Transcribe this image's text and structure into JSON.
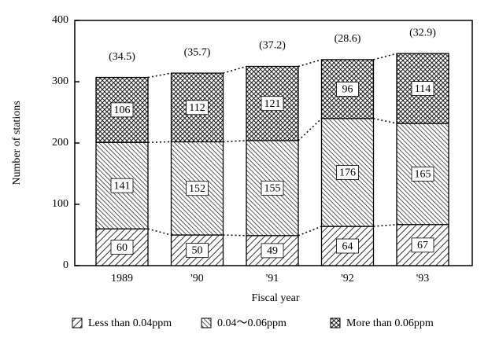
{
  "chart_data": {
    "type": "stacked-bar",
    "y_label": "Number of stations",
    "x_label": "Fiscal year",
    "categories": [
      "1989",
      "'90",
      "'91",
      "'92",
      "'93"
    ],
    "series": [
      {
        "name": "Less than 0.04ppm",
        "color": "#000000",
        "pattern": "hatch-right",
        "values": [
          60,
          50,
          49,
          64,
          67
        ]
      },
      {
        "name": "0.04～0.06ppm",
        "color": "#000000",
        "pattern": "hatch-left",
        "values": [
          141,
          152,
          155,
          176,
          165
        ]
      },
      {
        "name": "More than 0.06ppm",
        "color": "#000000",
        "pattern": "crosshatch",
        "values": [
          106,
          112,
          121,
          96,
          114
        ]
      }
    ],
    "annotations": [
      "(34.5)",
      "(35.7)",
      "(37.2)",
      "(28.6)",
      "(32.9)"
    ],
    "ylim": [
      0,
      400
    ],
    "yticks": [
      0,
      100,
      200,
      300,
      400
    ],
    "legend": "bottom"
  }
}
